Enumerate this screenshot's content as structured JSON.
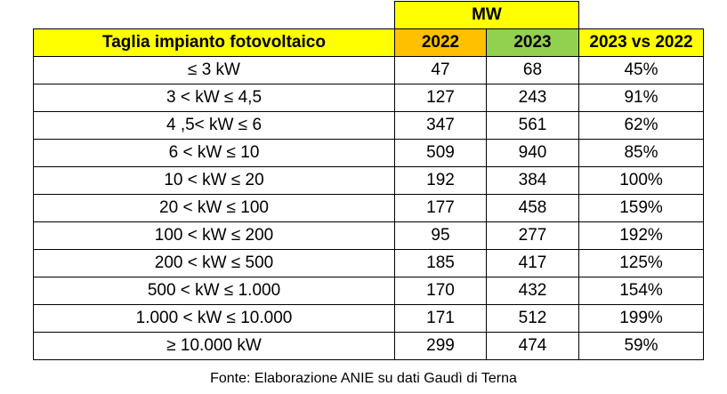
{
  "table": {
    "group_header": "MW",
    "columns": {
      "size": "Taglia impianto fotovoltaico",
      "y2022": "2022",
      "y2023": "2023",
      "delta": "2023 vs 2022"
    },
    "rows": [
      {
        "size": "≤ 3 kW",
        "y2022": "47",
        "y2023": "68",
        "delta": "45%"
      },
      {
        "size": "3 < kW ≤ 4,5",
        "y2022": "127",
        "y2023": "243",
        "delta": "91%"
      },
      {
        "size": "4 ,5< kW ≤ 6",
        "y2022": "347",
        "y2023": "561",
        "delta": "62%"
      },
      {
        "size": "6 < kW ≤ 10",
        "y2022": "509",
        "y2023": "940",
        "delta": "85%"
      },
      {
        "size": "10 < kW ≤ 20",
        "y2022": "192",
        "y2023": "384",
        "delta": "100%"
      },
      {
        "size": "20 < kW ≤ 100",
        "y2022": "177",
        "y2023": "458",
        "delta": "159%"
      },
      {
        "size": "100 < kW ≤ 200",
        "y2022": "95",
        "y2023": "277",
        "delta": "192%"
      },
      {
        "size": "200 < kW ≤ 500",
        "y2022": "185",
        "y2023": "417",
        "delta": "125%"
      },
      {
        "size": "500 < kW ≤ 1.000",
        "y2022": "170",
        "y2023": "432",
        "delta": "154%"
      },
      {
        "size": "1.000 < kW ≤ 10.000",
        "y2022": "171",
        "y2023": "512",
        "delta": "199%"
      },
      {
        "size": "≥ 10.000 kW",
        "y2022": "299",
        "y2023": "474",
        "delta": "59%"
      }
    ]
  },
  "source": "Fonte: Elaborazione ANIE su dati Gaudì di Terna",
  "colors": {
    "header_yellow": "#ffff00",
    "header_2022_orange": "#ffc000",
    "header_2023_green": "#92d050"
  }
}
